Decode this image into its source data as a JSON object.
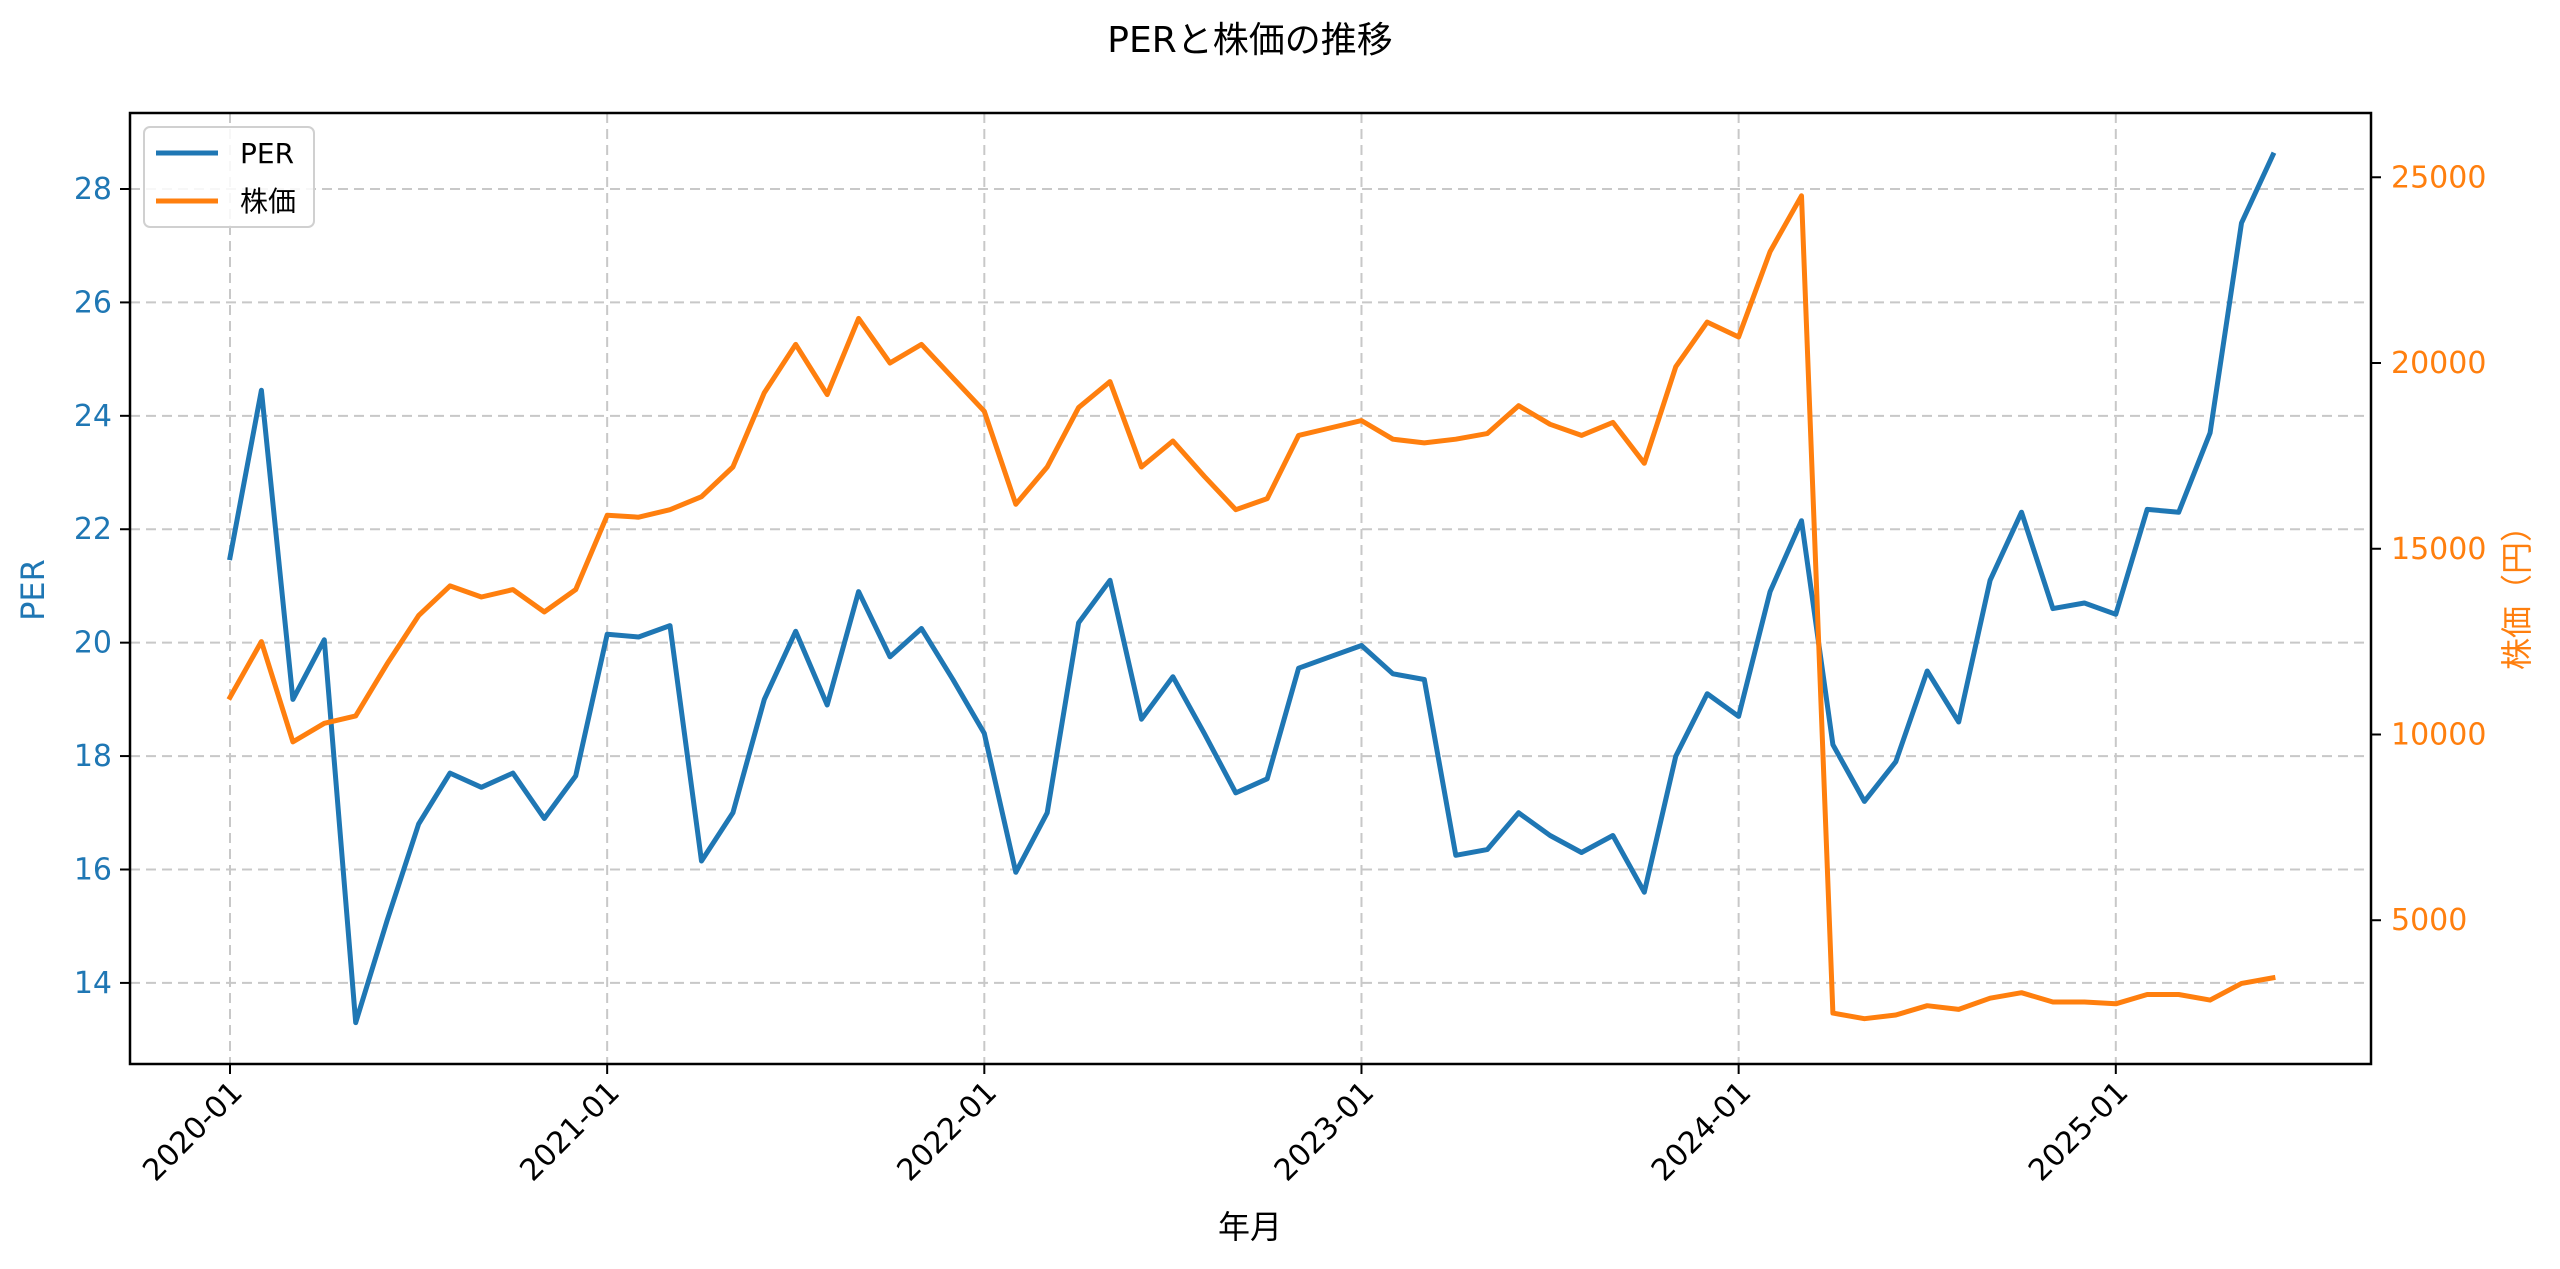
{
  "chart_data": {
    "type": "line",
    "title": "PERと株価の推移",
    "xlabel": "年月",
    "ylabel": "PER",
    "ylabel_right": "株価（円）",
    "x_ticks": [
      "2020-01",
      "2021-01",
      "2022-01",
      "2023-01",
      "2024-01",
      "2025-01"
    ],
    "y_ticks_left": [
      14,
      16,
      18,
      20,
      22,
      24,
      26,
      28
    ],
    "y_ticks_right": [
      5000,
      10000,
      15000,
      20000,
      25000
    ],
    "ylim_left": [
      12.57,
      29.34
    ],
    "ylim_right": [
      1130,
      26730
    ],
    "grid": true,
    "legend_position": "upper left",
    "x": [
      "2020-01",
      "2020-02",
      "2020-03",
      "2020-04",
      "2020-05",
      "2020-06",
      "2020-07",
      "2020-08",
      "2020-09",
      "2020-10",
      "2020-11",
      "2020-12",
      "2021-01",
      "2021-02",
      "2021-03",
      "2021-04",
      "2021-05",
      "2021-06",
      "2021-07",
      "2021-08",
      "2021-09",
      "2021-10",
      "2021-11",
      "2021-12",
      "2022-01",
      "2022-02",
      "2022-03",
      "2022-04",
      "2022-05",
      "2022-06",
      "2022-07",
      "2022-08",
      "2022-09",
      "2022-10",
      "2022-11",
      "2022-12",
      "2023-01",
      "2023-02",
      "2023-03",
      "2023-04",
      "2023-05",
      "2023-06",
      "2023-07",
      "2023-08",
      "2023-09",
      "2023-10",
      "2023-11",
      "2023-12",
      "2024-01",
      "2024-02",
      "2024-03",
      "2024-04",
      "2024-05",
      "2024-06",
      "2024-07",
      "2024-08",
      "2024-09",
      "2024-10",
      "2024-11",
      "2024-12",
      "2025-01",
      "2025-02",
      "2025-03",
      "2025-04",
      "2025-05",
      "2025-06"
    ],
    "series": [
      {
        "name": "PER",
        "axis": "left",
        "color": "#1f77b4",
        "values": [
          21.5,
          24.45,
          19.0,
          20.05,
          13.3,
          15.1,
          16.8,
          17.7,
          17.45,
          17.7,
          16.9,
          17.65,
          20.15,
          20.1,
          20.3,
          16.15,
          17.0,
          19.0,
          20.2,
          18.9,
          20.9,
          19.75,
          20.25,
          19.35,
          18.4,
          15.95,
          17.0,
          20.35,
          21.1,
          18.65,
          19.4,
          18.4,
          17.35,
          17.6,
          19.55,
          19.75,
          19.95,
          19.45,
          19.35,
          16.25,
          16.35,
          17.0,
          16.6,
          16.3,
          16.6,
          15.6,
          18.0,
          19.1,
          18.7,
          20.9,
          22.15,
          18.2,
          17.2,
          17.9,
          19.5,
          18.6,
          21.1,
          22.3,
          20.6,
          20.7,
          20.5,
          22.35,
          22.3,
          23.7,
          27.4,
          28.6
        ]
      },
      {
        "name": "株価",
        "axis": "right",
        "color": "#ff7f0e",
        "values": [
          11000,
          12500,
          9800,
          10300,
          10500,
          11900,
          13200,
          14000,
          13700,
          13900,
          13300,
          13900,
          15900,
          15850,
          16050,
          16400,
          17200,
          19200,
          20500,
          19150,
          21200,
          20000,
          20500,
          19600,
          18700,
          16200,
          17200,
          18800,
          19500,
          17200,
          17900,
          16950,
          16050,
          16350,
          18050,
          18250,
          18450,
          17950,
          17850,
          17950,
          18100,
          18850,
          18350,
          18050,
          18400,
          17300,
          19900,
          21100,
          20700,
          23000,
          24500,
          2500,
          2350,
          2450,
          2700,
          2600,
          2900,
          3050,
          2800,
          2800,
          2750,
          3000,
          3000,
          2850,
          3300,
          3450
        ]
      }
    ]
  },
  "colors": {
    "left_axis": "#1f77b4",
    "right_axis": "#ff7f0e",
    "grid": "#c8c8c8"
  }
}
